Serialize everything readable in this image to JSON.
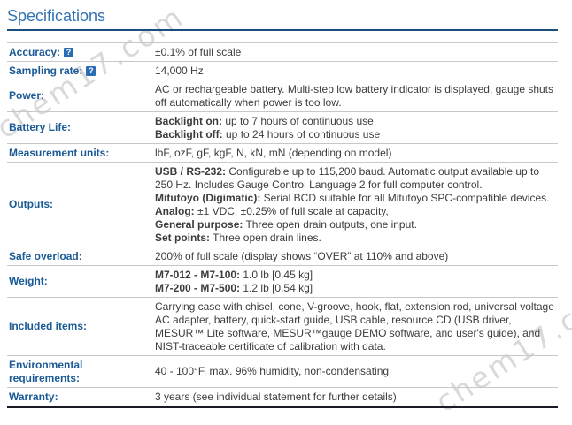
{
  "page": {
    "title": "Specifications"
  },
  "watermark": {
    "text": "chem17.com",
    "color": "#bcbcbc"
  },
  "icons": {
    "help_glyph": "?"
  },
  "colors": {
    "title_blue": "#3373b1",
    "title_rule_blue": "#1c4e7b",
    "label_blue": "#1a5a96",
    "value_text": "#3c3c3c",
    "row_divider": "#c8c8c8",
    "table_bottom_border": "#1b1b26",
    "help_icon_bg": "#2a6db5"
  },
  "table": {
    "rows": [
      {
        "label": "Accuracy:",
        "help": true,
        "lines": [
          {
            "bold": "",
            "text": "±0.1% of full scale"
          }
        ]
      },
      {
        "label": "Sampling rate:",
        "help": true,
        "lines": [
          {
            "bold": "",
            "text": "14,000 Hz"
          }
        ]
      },
      {
        "label": "Power:",
        "help": false,
        "lines": [
          {
            "bold": "",
            "text": "AC or rechargeable battery. Multi-step low battery indicator is displayed, gauge shuts off automatically when power is too low."
          }
        ]
      },
      {
        "label": "Battery Life:",
        "help": false,
        "lines": [
          {
            "bold": "Backlight on:",
            "text": " up to 7 hours of continuous use"
          },
          {
            "bold": "Backlight off:",
            "text": " up to 24 hours of continuous use"
          }
        ]
      },
      {
        "label": "Measurement units:",
        "help": false,
        "lines": [
          {
            "bold": "",
            "text": "lbF, ozF, gF, kgF, N, kN, mN (depending on model)"
          }
        ]
      },
      {
        "label": "Outputs:",
        "help": false,
        "lines": [
          {
            "bold": "USB / RS-232:",
            "text": " Configurable up to 115,200 baud. Automatic output available up to 250 Hz. Includes Gauge Control Language 2 for full computer control."
          },
          {
            "bold": "Mitutoyo (Digimatic):",
            "text": " Serial BCD suitable for all Mitutoyo SPC-compatible devices."
          },
          {
            "bold": "Analog:",
            "text": " ±1 VDC, ±0.25% of full scale at capacity,"
          },
          {
            "bold": "General purpose:",
            "text": " Three open drain outputs, one input."
          },
          {
            "bold": "Set points:",
            "text": " Three open drain lines."
          }
        ]
      },
      {
        "label": "Safe overload:",
        "help": false,
        "lines": [
          {
            "bold": "",
            "text": "200% of full scale (display shows “OVER” at 110% and above)"
          }
        ]
      },
      {
        "label": "Weight:",
        "help": false,
        "lines": [
          {
            "bold": "M7-012 - M7-100:",
            "text": " 1.0 lb [0.45 kg]"
          },
          {
            "bold": "M7-200 - M7-500:",
            "text": " 1.2 lb [0.54 kg]"
          }
        ]
      },
      {
        "label": "Included items:",
        "help": false,
        "lines": [
          {
            "bold": "",
            "text": "Carrying case with chisel, cone, V-groove, hook, flat, extension rod, universal voltage AC adapter, battery, quick-start guide, USB cable, resource CD (USB driver, MESUR™ Lite software, MESUR™gauge DEMO software, and user's guide), and NIST-traceable certificate of calibration with data."
          }
        ]
      },
      {
        "label": "Environmental requirements:",
        "help": false,
        "lines": [
          {
            "bold": "",
            "text": "40 - 100°F, max. 96% humidity, non-condensating"
          }
        ]
      },
      {
        "label": "Warranty:",
        "help": false,
        "lines": [
          {
            "bold": "",
            "text": "3 years (see individual statement for further details)"
          }
        ]
      }
    ]
  }
}
